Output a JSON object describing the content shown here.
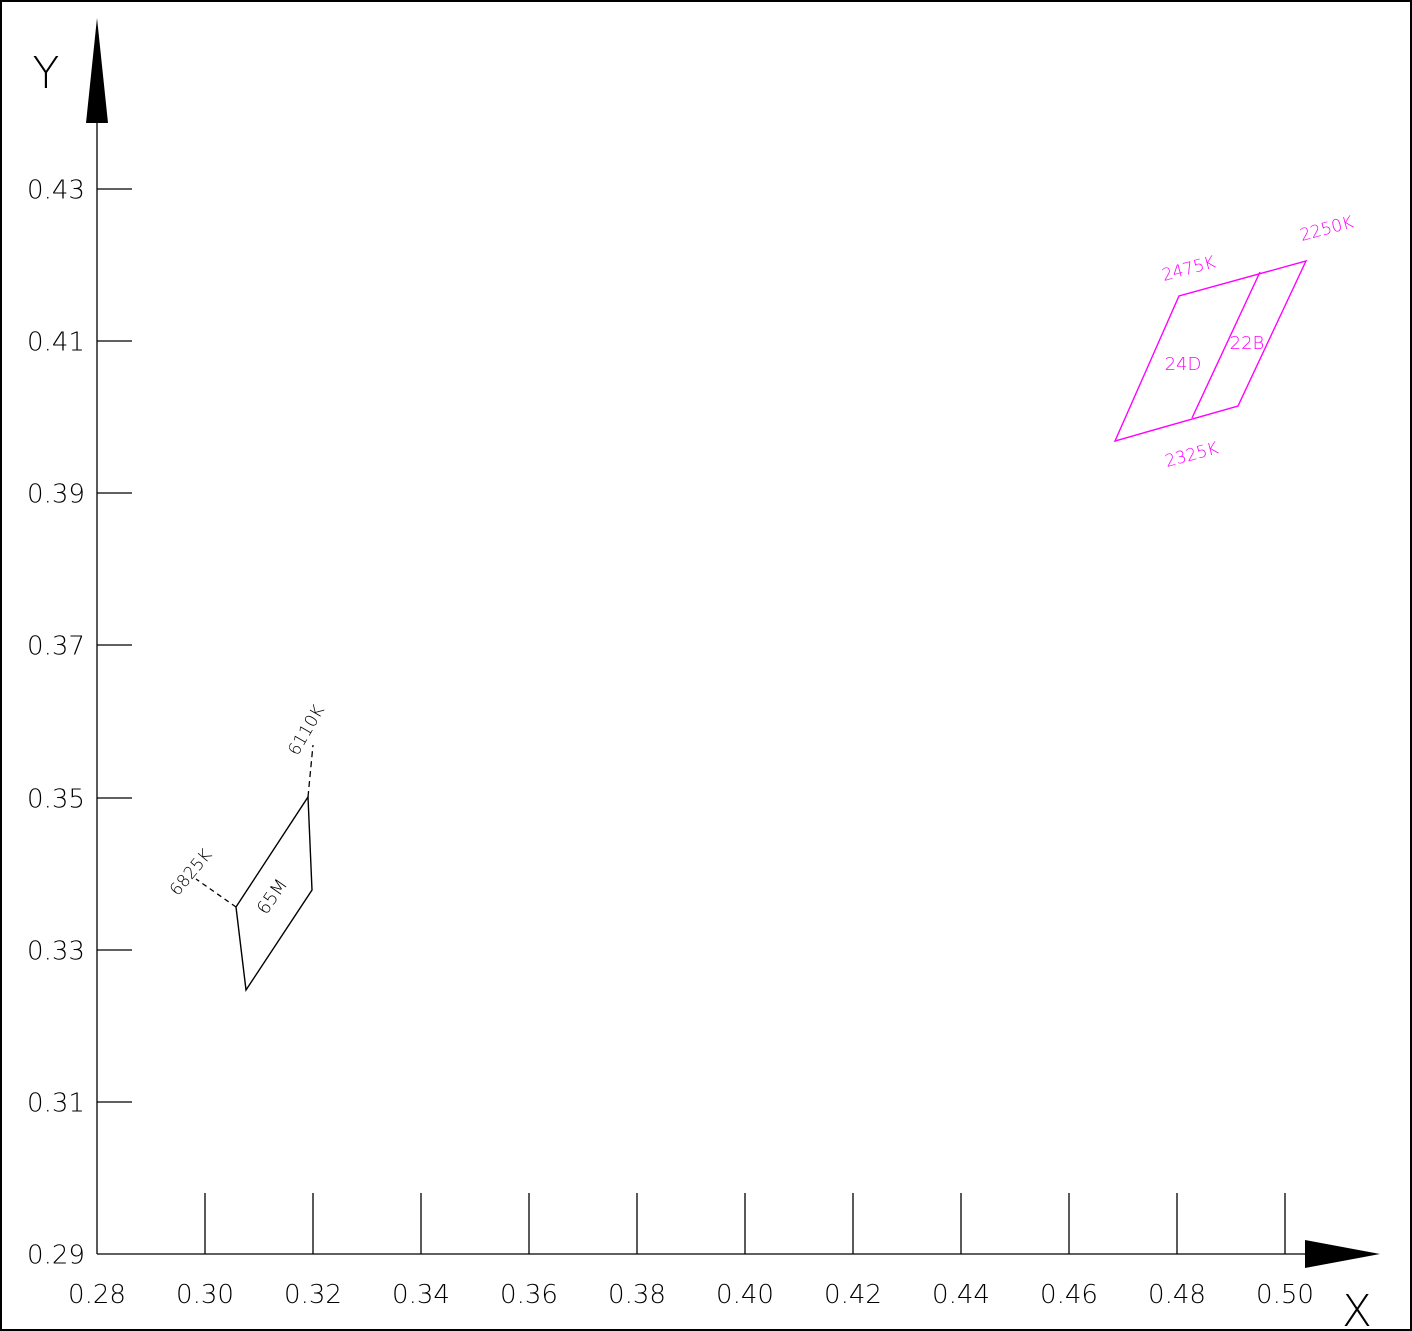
{
  "axes": {
    "x_label": "X",
    "y_label": "Y",
    "x_ticks": [
      "0.28",
      "0.30",
      "0.32",
      "0.34",
      "0.36",
      "0.38",
      "0.40",
      "0.42",
      "0.44",
      "0.46",
      "0.48",
      "0.50"
    ],
    "y_ticks": [
      "0.29",
      "0.31",
      "0.33",
      "0.35",
      "0.37",
      "0.39",
      "0.41",
      "0.43"
    ],
    "x_range": [
      0.28,
      0.5
    ],
    "y_range": [
      0.29,
      0.43
    ]
  },
  "colors": {
    "axis": "#000000",
    "black_shape": "#000000",
    "magenta_shape": "#ff00ff"
  },
  "black_shape": {
    "labels": {
      "center": "65M",
      "corner_a": "6825K",
      "corner_b": "6110K"
    }
  },
  "magenta_shape": {
    "labels": {
      "left_region": "24D",
      "right_region": "22B",
      "top_left": "2475K",
      "top_right": "2250K",
      "bottom": "2325K"
    }
  }
}
